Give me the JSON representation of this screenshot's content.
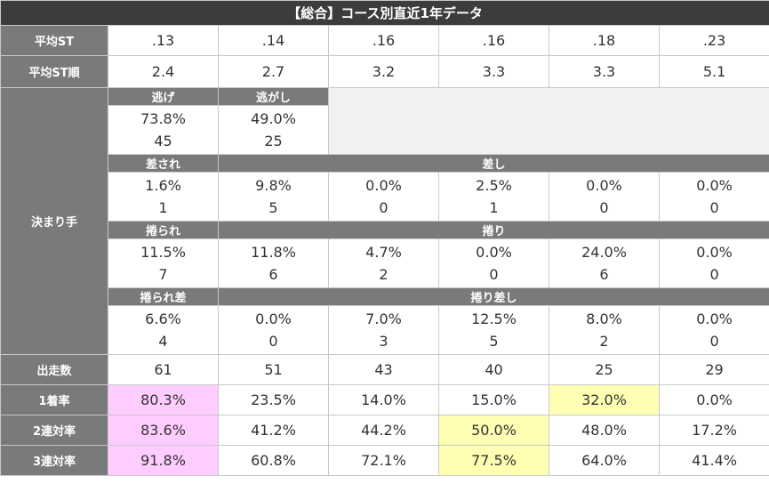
{
  "title": "【総合】コース別直近1年データ",
  "avg_st": {
    "label": "平均ST",
    "values": [
      ".13",
      ".14",
      ".16",
      ".16",
      ".18",
      ".23"
    ]
  },
  "avg_st_rank": {
    "label": "平均ST順",
    "values": [
      "2.4",
      "2.7",
      "3.2",
      "3.3",
      "3.3",
      "5.1"
    ]
  },
  "kimarite": {
    "label": "決まり手",
    "nige": {
      "label": "逃げ",
      "rate": "73.8%",
      "count": "45"
    },
    "nigashi": {
      "label": "逃がし",
      "rate": "49.0%",
      "count": "25"
    },
    "sasare": {
      "label": "差され",
      "rate": "1.6%",
      "count": "1"
    },
    "sashi": {
      "label": "差し",
      "rates": [
        "9.8%",
        "0.0%",
        "2.5%",
        "0.0%",
        "0.0%"
      ],
      "counts": [
        "5",
        "0",
        "1",
        "0",
        "0"
      ]
    },
    "makurare": {
      "label": "捲られ",
      "rate": "11.5%",
      "count": "7"
    },
    "makuri": {
      "label": "捲り",
      "rates": [
        "11.8%",
        "4.7%",
        "0.0%",
        "24.0%",
        "0.0%"
      ],
      "counts": [
        "6",
        "2",
        "0",
        "6",
        "0"
      ]
    },
    "makurare_sashi": {
      "label": "捲られ差",
      "rate": "6.6%",
      "count": "4"
    },
    "makuri_sashi": {
      "label": "捲り差し",
      "rates": [
        "0.0%",
        "7.0%",
        "12.5%",
        "8.0%",
        "0.0%"
      ],
      "counts": [
        "0",
        "3",
        "5",
        "2",
        "0"
      ]
    }
  },
  "starts": {
    "label": "出走数",
    "values": [
      "61",
      "51",
      "43",
      "40",
      "25",
      "29"
    ]
  },
  "win_rate": {
    "label": "1着率",
    "values": [
      "80.3%",
      "23.5%",
      "14.0%",
      "15.0%",
      "32.0%",
      "0.0%"
    ]
  },
  "quinella_rate": {
    "label": "2連対率",
    "values": [
      "83.6%",
      "41.2%",
      "44.2%",
      "50.0%",
      "48.0%",
      "17.2%"
    ]
  },
  "trio_rate": {
    "label": "3連対率",
    "values": [
      "91.8%",
      "60.8%",
      "72.1%",
      "77.5%",
      "64.0%",
      "41.4%"
    ]
  },
  "highlight_colors": {
    "pink": "#ffccff",
    "yellow": "#ffffb4",
    "header_gray": "#7a7a7a",
    "title_dark": "#3c3c3c"
  }
}
